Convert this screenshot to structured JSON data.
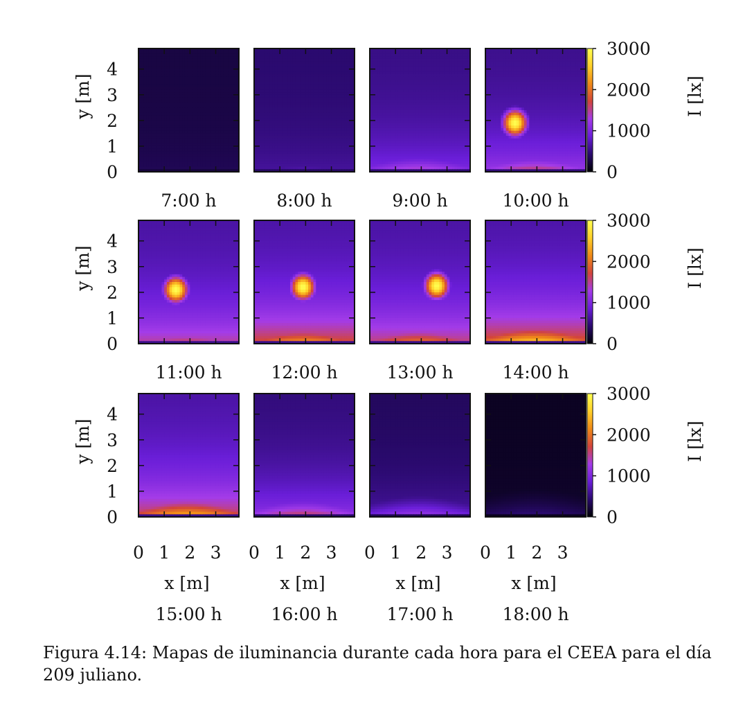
{
  "caption": "Figura 4.14: Mapas de iluminancia durante cada hora para el CEEA para el día 209 juliano.",
  "chart_data": {
    "type": "heatmap",
    "xlabel": "x [m]",
    "ylabel": "y [m]",
    "colorbar_label": "I [lx]",
    "xlim": [
      0,
      3.9
    ],
    "ylim": [
      0,
      4.8
    ],
    "x_ticks": [
      "0",
      "1",
      "2",
      "3"
    ],
    "y_ticks": [
      "0",
      "1",
      "2",
      "3",
      "4"
    ],
    "colorbar_range": [
      0,
      3000
    ],
    "colorbar_ticks": [
      "0",
      "1000",
      "2000",
      "3000"
    ],
    "colormap": [
      "#000004",
      "#2a0a6e",
      "#6a1ed8",
      "#a43ce8",
      "#d2453c",
      "#f08a18",
      "#ffd02a",
      "#ffff50"
    ],
    "rows": 3,
    "cols": 4,
    "panels": [
      {
        "time": "7:00 h",
        "base": 250,
        "gradient": 80,
        "floor_peak": 0
      },
      {
        "time": "8:00 h",
        "base": 420,
        "gradient": 200,
        "floor_peak": 750
      },
      {
        "time": "9:00 h",
        "base": 500,
        "gradient": 500,
        "floor_peak": 1550
      },
      {
        "time": "10:00 h",
        "base": 520,
        "gradient": 700,
        "floor_peak": 1750,
        "spot": {
          "x": 1.15,
          "y": 1.9,
          "peak": 3000
        }
      },
      {
        "time": "11:00 h",
        "base": 600,
        "gradient": 900,
        "floor_peak": 1800,
        "spot": {
          "x": 1.45,
          "y": 2.1,
          "peak": 3000
        }
      },
      {
        "time": "12:00 h",
        "base": 600,
        "gradient": 1200,
        "floor_peak": 2400,
        "spot": {
          "x": 1.9,
          "y": 2.2,
          "peak": 3000
        }
      },
      {
        "time": "13:00 h",
        "base": 600,
        "gradient": 1000,
        "floor_peak": 2200,
        "spot": {
          "x": 2.6,
          "y": 2.25,
          "peak": 3000
        }
      },
      {
        "time": "14:00 h",
        "base": 600,
        "gradient": 1300,
        "floor_peak": 2800
      },
      {
        "time": "15:00 h",
        "base": 600,
        "gradient": 1100,
        "floor_peak": 2600
      },
      {
        "time": "16:00 h",
        "base": 450,
        "gradient": 700,
        "floor_peak": 1800
      },
      {
        "time": "17:00 h",
        "base": 350,
        "gradient": 300,
        "floor_peak": 1300
      },
      {
        "time": "18:00 h",
        "base": 120,
        "gradient": 60,
        "floor_peak": 500
      }
    ]
  }
}
